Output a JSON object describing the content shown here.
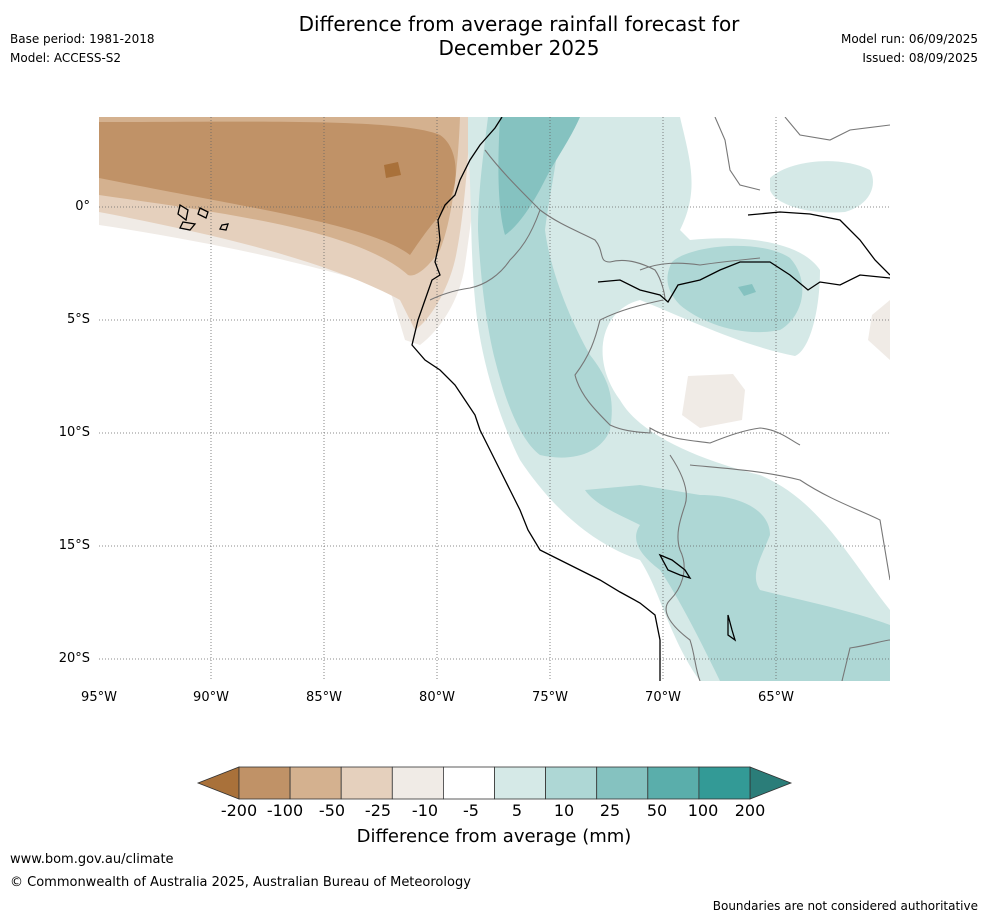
{
  "header": {
    "title_line1": "Difference from average rainfall forecast for",
    "title_line2": "December 2025",
    "base_period": "Base period: 1981-2018",
    "model": "Model: ACCESS-S2",
    "model_run": "Model run: 06/09/2025",
    "issued": "Issued: 08/09/2025"
  },
  "map": {
    "lat_labels": [
      "0°",
      "5°S",
      "10°S",
      "15°S",
      "20°S"
    ],
    "lon_labels": [
      "95°W",
      "90°W",
      "85°W",
      "80°W",
      "75°W",
      "70°W",
      "65°W"
    ]
  },
  "colorbar": {
    "title": "Difference from average (mm)",
    "ticks": [
      "-200",
      "-100",
      "-50",
      "-25",
      "-10",
      "-5",
      "5",
      "10",
      "25",
      "50",
      "100",
      "200"
    ],
    "colors": [
      "#a9713a",
      "#c09267",
      "#d4b18f",
      "#e5d0bd",
      "#f0ebe6",
      "#ffffff",
      "#d5e9e7",
      "#aed7d5",
      "#85c2c0",
      "#5aaeab",
      "#339a96",
      "#2b7d79"
    ]
  },
  "footer": {
    "url": "www.bom.gov.au/climate",
    "copyright": "© Commonwealth of Australia 2025, Australian Bureau of Meteorology",
    "note": "Boundaries are not considered authoritative"
  }
}
